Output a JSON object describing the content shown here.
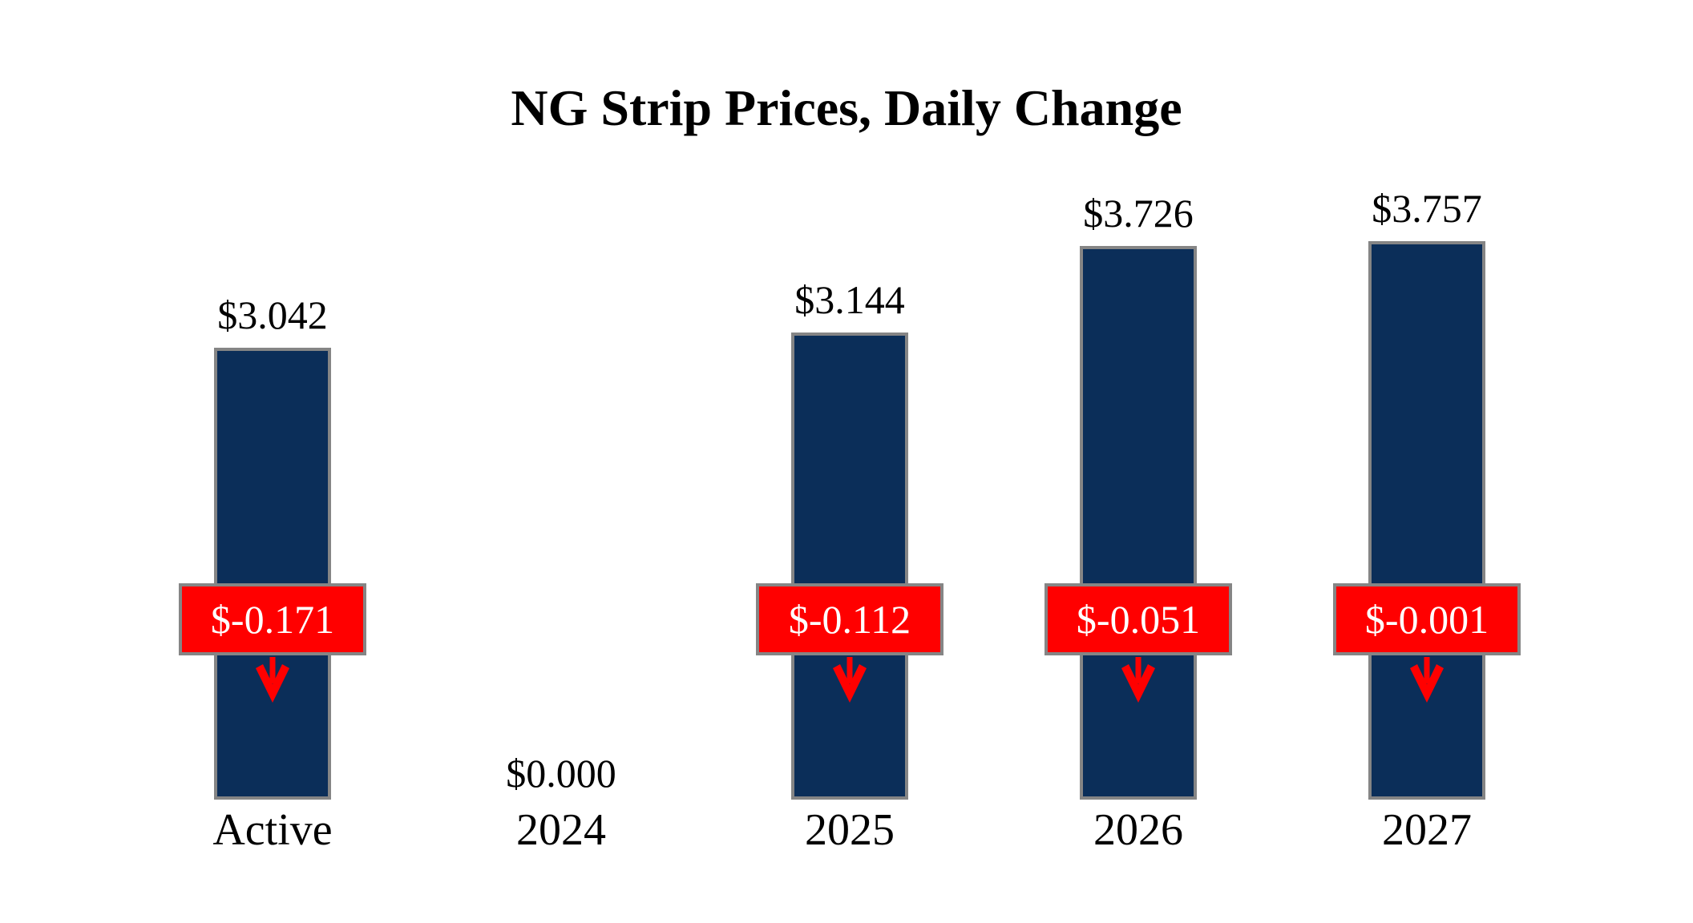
{
  "chart_data": {
    "type": "bar",
    "title": "NG Strip Prices, Daily Change",
    "categories": [
      "Active",
      "2024",
      "2025",
      "2026",
      "2027"
    ],
    "series": [
      {
        "name": "strip_price",
        "values": [
          3.042,
          0.0,
          3.144,
          3.726,
          3.757
        ]
      },
      {
        "name": "daily_change",
        "values": [
          -0.171,
          0.0,
          -0.112,
          -0.051,
          -0.001
        ]
      }
    ],
    "value_labels": [
      "$3.042",
      "$0.000",
      "$3.144",
      "$3.726",
      "$3.757"
    ],
    "change_labels": [
      "$-0.171",
      "",
      "$-0.112",
      "$-0.051",
      "$-0.001"
    ],
    "ylim": [
      0,
      4.3
    ],
    "grid": false,
    "legend": "none",
    "colors": {
      "bar_fill": "#0B2E59",
      "bar_border": "#858585",
      "change_box_fill": "#FF0000",
      "change_box_border": "#858585",
      "change_text": "#FFFFFF",
      "arrow": "#FF0000",
      "label_text": "#000000",
      "background": "#FFFFFF"
    }
  }
}
